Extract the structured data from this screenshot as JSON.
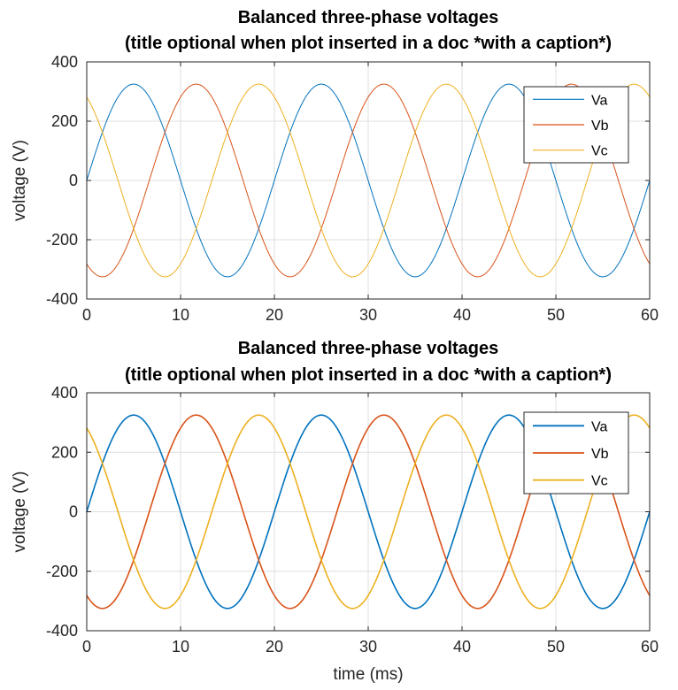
{
  "chart_data": [
    {
      "type": "line",
      "title": "Balanced three-phase voltages",
      "subtitle": "(title optional when plot inserted in a doc *with a caption*)",
      "xlabel": "",
      "ylabel": "voltage (V)",
      "xlim": [
        0,
        60
      ],
      "ylim": [
        -400,
        400
      ],
      "xticks": [
        0,
        10,
        20,
        30,
        40,
        50,
        60
      ],
      "yticks": [
        -400,
        -200,
        0,
        200,
        400
      ],
      "grid": true,
      "legend_position": "top-right",
      "line_width": "thin",
      "x_unit": "ms",
      "series": [
        {
          "name": "Va",
          "color": "#0072BD",
          "amplitude": 325,
          "frequency_hz": 50,
          "phase_deg": 0
        },
        {
          "name": "Vb",
          "color": "#D95319",
          "amplitude": 325,
          "frequency_hz": 50,
          "phase_deg": -120
        },
        {
          "name": "Vc",
          "color": "#EDB120",
          "amplitude": 325,
          "frequency_hz": 50,
          "phase_deg": 120
        }
      ]
    },
    {
      "type": "line",
      "title": "Balanced three-phase voltages",
      "subtitle": "(title optional when plot inserted in a doc *with a caption*)",
      "xlabel": "time (ms)",
      "ylabel": "voltage (V)",
      "xlim": [
        0,
        60
      ],
      "ylim": [
        -400,
        400
      ],
      "xticks": [
        0,
        10,
        20,
        30,
        40,
        50,
        60
      ],
      "yticks": [
        -400,
        -200,
        0,
        200,
        400
      ],
      "grid": true,
      "legend_position": "top-right",
      "line_width": "thick",
      "x_unit": "ms",
      "series": [
        {
          "name": "Va",
          "color": "#0072BD",
          "amplitude": 325,
          "frequency_hz": 50,
          "phase_deg": 0
        },
        {
          "name": "Vb",
          "color": "#D95319",
          "amplitude": 325,
          "frequency_hz": 50,
          "phase_deg": -120
        },
        {
          "name": "Vc",
          "color": "#EDB120",
          "amplitude": 325,
          "frequency_hz": 50,
          "phase_deg": 120
        }
      ]
    }
  ]
}
